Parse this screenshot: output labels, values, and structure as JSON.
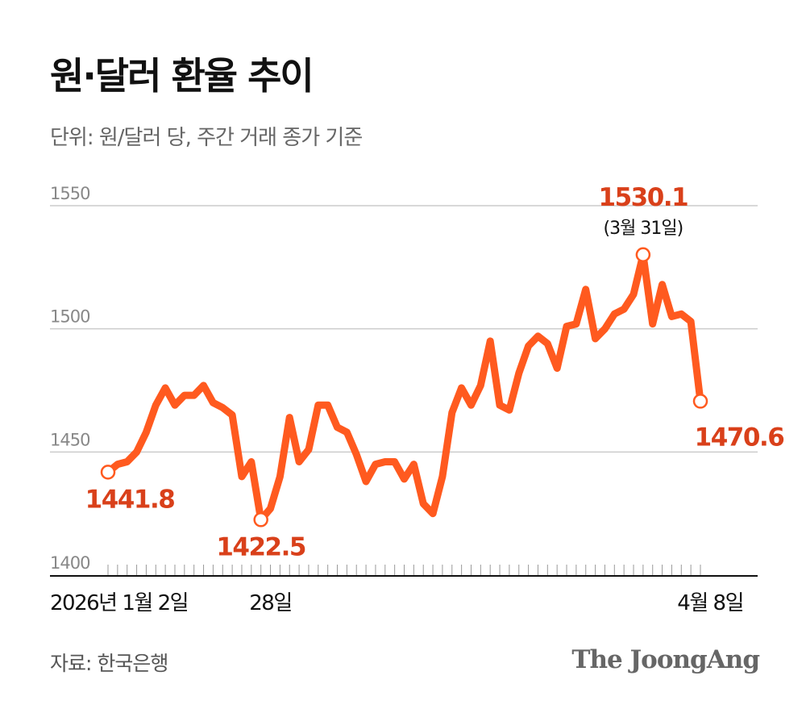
{
  "title": "원·달러 환율 추이",
  "subtitle": "단위: 원/달러 당, 주간 거래 종가 기준",
  "source": "자료: 한국은행",
  "logo": "The JoongAng",
  "colors": {
    "line": "#ff5a1f",
    "label": "#d9401a",
    "grid": "#cccccc",
    "axis": "#111111"
  },
  "chart_data": {
    "type": "line",
    "title": "원·달러 환율 추이",
    "ylim": [
      1400,
      1550
    ],
    "yticks": [
      1400,
      1450,
      1500,
      1550
    ],
    "grid": true,
    "x_tick_labels": [
      {
        "index": 0,
        "label": "2026년 1월 2일"
      },
      {
        "index": 17,
        "label": "28일"
      },
      {
        "index": 61,
        "label": "4월 8일"
      }
    ],
    "series": [
      {
        "name": "원·달러 환율",
        "values": [
          1441.8,
          1445,
          1446,
          1450,
          1458,
          1469,
          1476,
          1469,
          1473,
          1473,
          1477,
          1470,
          1468,
          1465,
          1440,
          1446,
          1422.5,
          1427,
          1440,
          1464,
          1446,
          1451,
          1469,
          1469,
          1460,
          1458,
          1449,
          1438,
          1445,
          1446,
          1446,
          1439,
          1445,
          1429,
          1425,
          1440,
          1466,
          1476,
          1469,
          1477,
          1495,
          1469,
          1467,
          1482,
          1493,
          1497,
          1494,
          1484,
          1501,
          1502,
          1516,
          1496,
          1500,
          1506,
          1508,
          1514,
          1530.1,
          1502,
          1518,
          1505,
          1506,
          1503,
          1470.6
        ]
      }
    ],
    "annotations": [
      {
        "index": 0,
        "value": "1441.8",
        "sub": "",
        "pos": "below"
      },
      {
        "index": 16,
        "value": "1422.5",
        "sub": "",
        "pos": "below"
      },
      {
        "index": 56,
        "value": "1530.1",
        "sub": "(3월 31일)",
        "pos": "above"
      },
      {
        "index": 62,
        "value": "1470.6",
        "sub": "",
        "pos": "below-right"
      }
    ]
  }
}
